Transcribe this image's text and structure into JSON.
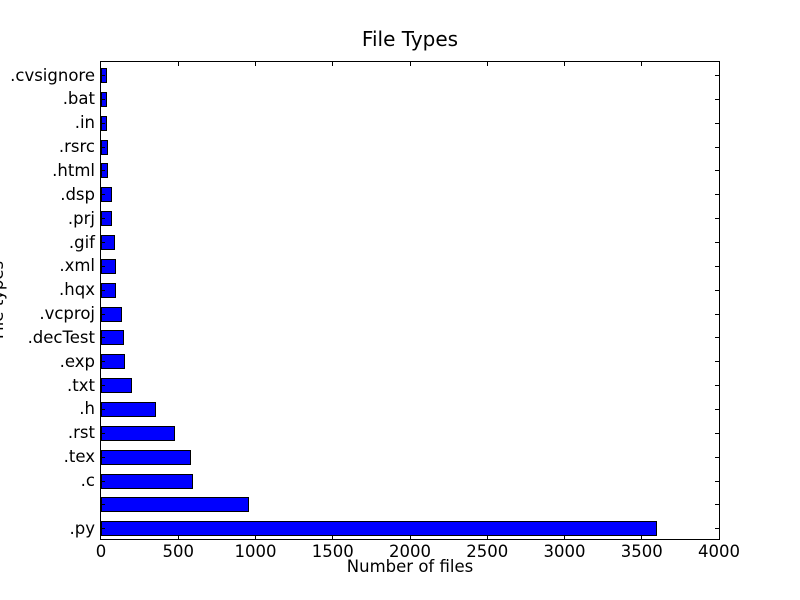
{
  "chart_data": {
    "type": "bar",
    "orientation": "horizontal",
    "title": "File Types",
    "xlabel": "Number of files",
    "ylabel": "File types",
    "order": "top-to-bottom",
    "categories": [
      ".cvsignore",
      ".bat",
      ".in",
      ".rsrc",
      ".html",
      ".dsp",
      ".prj",
      ".gif",
      ".xml",
      ".hqx",
      ".vcproj",
      ".decTest",
      ".exp",
      ".txt",
      ".h",
      ".rst",
      ".tex",
      ".c",
      "",
      ".py"
    ],
    "values": [
      38,
      40,
      42,
      46,
      48,
      68,
      72,
      90,
      95,
      100,
      134,
      151,
      157,
      198,
      355,
      480,
      585,
      594,
      958,
      3600
    ],
    "xlim": [
      0,
      4000
    ],
    "xticks": [
      0,
      500,
      1000,
      1500,
      2000,
      2500,
      3000,
      3500,
      4000
    ],
    "bar_color": "#0000ff",
    "bar_edge_color": "#000000",
    "background": "#ffffff",
    "grid": false
  }
}
